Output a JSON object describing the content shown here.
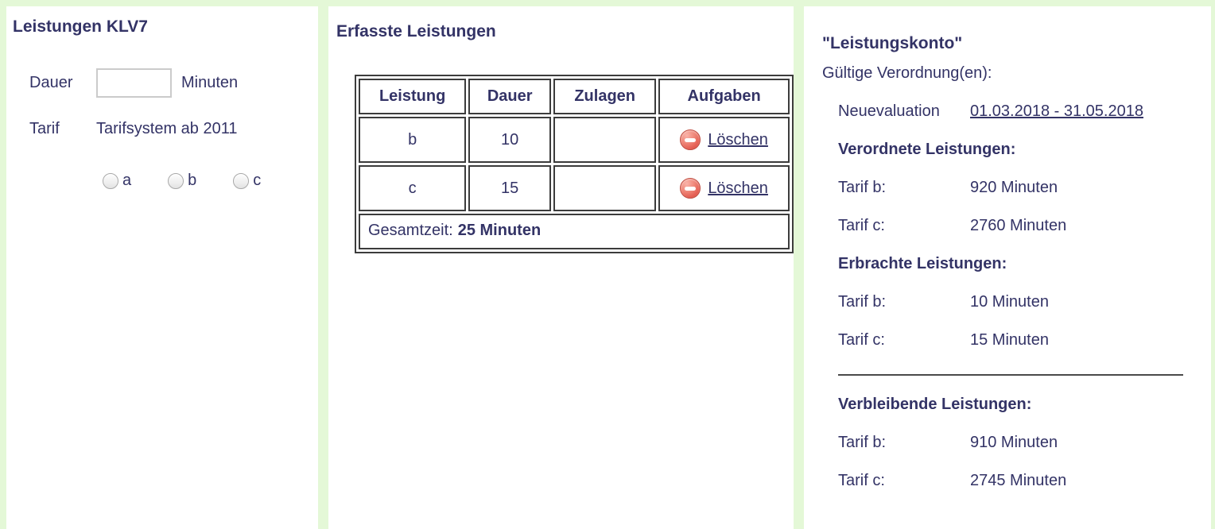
{
  "colors": {
    "page_bg": "#e4f8d7",
    "panel_bg": "#ffffff",
    "text_navy": "#333366",
    "table_border": "#3c3c3c",
    "delete_icon_red": "#e2564a",
    "input_border": "#cbcbcb"
  },
  "panel_left": {
    "title": "Leistungen KLV7",
    "dauer_label": "Dauer",
    "dauer_value": "",
    "dauer_unit": "Minuten",
    "tarif_label": "Tarif",
    "tarif_system": "Tarifsystem ab 2011",
    "radios": [
      {
        "label": "a",
        "checked": false
      },
      {
        "label": "b",
        "checked": false
      },
      {
        "label": "c",
        "checked": false
      }
    ]
  },
  "panel_middle": {
    "title": "Erfasste Leistungen",
    "table": {
      "headers": [
        "Leistung",
        "Dauer",
        "Zulagen",
        "Aufgaben"
      ],
      "rows": [
        {
          "leistung": "b",
          "dauer": "10",
          "zulagen": "",
          "action": "Löschen",
          "action_icon": "minus-circle-icon"
        },
        {
          "leistung": "c",
          "dauer": "15",
          "zulagen": "",
          "action": "Löschen",
          "action_icon": "minus-circle-icon"
        }
      ],
      "footer_label": "Gesamtzeit:",
      "footer_value": "25 Minuten"
    }
  },
  "panel_right": {
    "title": "\"Leistungskonto\"",
    "subtitle": "Gültige Verordnung(en):",
    "verordnung": {
      "name": "Neuevaluation",
      "date_range": "01.03.2018 - 31.05.2018"
    },
    "sections": [
      {
        "heading": "Verordnete Leistungen:",
        "rows": [
          {
            "label": "Tarif b:",
            "value": "920 Minuten"
          },
          {
            "label": "Tarif c:",
            "value": "2760 Minuten"
          }
        ]
      },
      {
        "heading": "Erbrachte Leistungen:",
        "rows": [
          {
            "label": "Tarif b:",
            "value": "10 Minuten"
          },
          {
            "label": "Tarif c:",
            "value": "15 Minuten"
          }
        ]
      },
      {
        "heading": "Verbleibende Leistungen:",
        "rows": [
          {
            "label": "Tarif b:",
            "value": "910 Minuten"
          },
          {
            "label": "Tarif c:",
            "value": "2745 Minuten"
          }
        ]
      }
    ]
  }
}
